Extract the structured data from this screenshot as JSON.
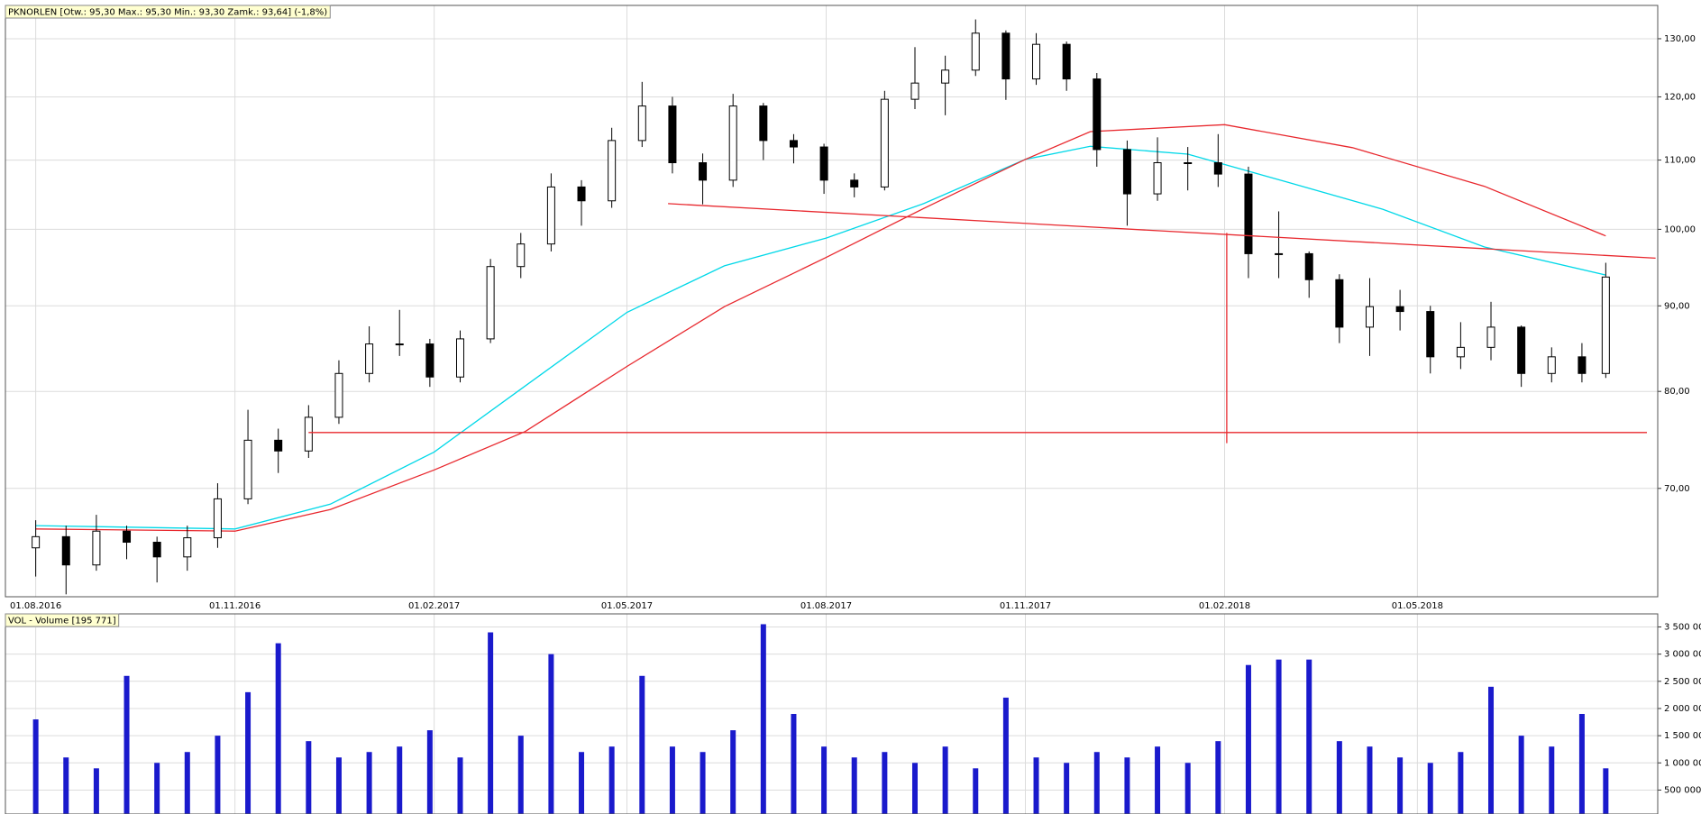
{
  "chart_data": [
    {
      "type": "candlestick",
      "title": "PKNORLEN [Otw.: 95,30  Max.: 95,30  Min.: 93,30  Zamk.: 93,64] (-1,8%)",
      "x": [
        "2016-08-01",
        "2016-08-15",
        "2016-08-29",
        "2016-09-12",
        "2016-09-26",
        "2016-10-10",
        "2016-10-24",
        "2016-11-07",
        "2016-11-21",
        "2016-12-05",
        "2016-12-19",
        "2017-01-02",
        "2017-01-16",
        "2017-01-30",
        "2017-02-13",
        "2017-02-27",
        "2017-03-13",
        "2017-03-27",
        "2017-04-10",
        "2017-04-24",
        "2017-05-08",
        "2017-05-22",
        "2017-06-05",
        "2017-06-19",
        "2017-07-03",
        "2017-07-17",
        "2017-07-31",
        "2017-08-14",
        "2017-08-28",
        "2017-09-11",
        "2017-09-25",
        "2017-10-09",
        "2017-10-23",
        "2017-11-06",
        "2017-11-20",
        "2017-12-04",
        "2017-12-18",
        "2018-01-01",
        "2018-01-15",
        "2018-01-29",
        "2018-02-12",
        "2018-02-26",
        "2018-03-12",
        "2018-03-26",
        "2018-04-09",
        "2018-04-23",
        "2018-05-07",
        "2018-05-21",
        "2018-06-04",
        "2018-06-18",
        "2018-07-02",
        "2018-07-16",
        "2018-07-27"
      ],
      "open": [
        64.5,
        65.5,
        63,
        66,
        65,
        63.7,
        65.4,
        69,
        74.8,
        73.7,
        77.2,
        82,
        85.4,
        85.4,
        81.6,
        86,
        95,
        98,
        106,
        104,
        113,
        118.5,
        109.6,
        107,
        118.5,
        113,
        112,
        107,
        106,
        119.6,
        122.3,
        124.5,
        131,
        123,
        129,
        123,
        111.6,
        105,
        109.6,
        109.6,
        107.9,
        96.7,
        96.7,
        93.3,
        87.4,
        89.9,
        89.3,
        83.9,
        85,
        87.4,
        82,
        83.9,
        82
      ],
      "high": [
        67,
        66.5,
        67.5,
        66.5,
        65.5,
        66.5,
        70.5,
        78,
        76,
        78.5,
        83.5,
        87.5,
        89.5,
        86,
        87,
        96,
        99.5,
        108,
        107,
        115,
        122.5,
        120,
        111,
        120.5,
        119,
        114,
        112.5,
        108,
        121,
        128.5,
        127,
        133.5,
        131.5,
        131,
        129.5,
        124,
        113,
        113.5,
        112,
        114,
        109,
        102.5,
        97,
        94,
        93.5,
        92,
        90,
        88,
        90.5,
        87.6,
        85,
        85.5,
        95.5
      ],
      "low": [
        62,
        60.5,
        62.5,
        63.5,
        61.5,
        62.5,
        64.5,
        68.5,
        71.5,
        73,
        76.5,
        81,
        84,
        80.5,
        81,
        85.5,
        93.5,
        97,
        100.5,
        103,
        112,
        108,
        103.5,
        106,
        110,
        109.5,
        105,
        104.5,
        105.5,
        118,
        117,
        123.5,
        119.5,
        122,
        121,
        109,
        100.5,
        104,
        105.5,
        106,
        93.5,
        93.5,
        91,
        85.5,
        84,
        87,
        82,
        82.5,
        83.5,
        80.5,
        81,
        81,
        81.5
      ],
      "close": [
        65.5,
        63,
        66,
        65,
        63.7,
        65.4,
        69,
        74.8,
        73.7,
        77.2,
        82,
        85.4,
        85.4,
        81.6,
        86,
        95,
        98,
        106,
        104,
        113,
        118.5,
        109.6,
        107,
        118.5,
        113,
        112,
        107,
        106,
        119.6,
        122.3,
        124.5,
        131,
        123,
        129,
        123,
        111.6,
        105,
        109.6,
        109.6,
        107.9,
        96.7,
        96.7,
        93.3,
        87.4,
        89.9,
        89.3,
        83.9,
        85,
        87.4,
        82,
        83.9,
        82,
        93.64
      ],
      "up_color": "#ffffff",
      "down_color": "#000000",
      "overlays": [
        {
          "color": "#00d8e8",
          "x": [
            "2016-08-01",
            "2016-11-01",
            "2016-12-15",
            "2017-02-01",
            "2017-03-15",
            "2017-05-01",
            "2017-06-15",
            "2017-08-01",
            "2017-09-15",
            "2017-11-01",
            "2017-12-01",
            "2018-01-15",
            "2018-03-01",
            "2018-04-15",
            "2018-06-01",
            "2018-07-27"
          ],
          "values": [
            66.5,
            66.2,
            68.5,
            73.6,
            80.6,
            89.2,
            95.1,
            98.8,
            103.6,
            110.1,
            112.1,
            110.9,
            106.8,
            102.8,
            97.6,
            93.9
          ]
        },
        {
          "color": "#e8282e",
          "x": [
            "2016-08-01",
            "2016-11-01",
            "2016-12-15",
            "2017-02-01",
            "2017-03-15",
            "2017-05-01",
            "2017-06-15",
            "2017-08-01",
            "2017-09-15",
            "2017-11-01",
            "2017-12-01",
            "2018-02-01",
            "2018-04-01",
            "2018-06-01",
            "2018-07-27"
          ],
          "values": [
            66.2,
            66,
            68,
            71.8,
            75.7,
            82.8,
            89.9,
            96.2,
            102.9,
            110.1,
            114.4,
            115.5,
            111.9,
            106.1,
            99.1
          ]
        }
      ],
      "lines": [
        {
          "color": "#e8282e",
          "x": [
            "2017-05-20",
            "2018-08-19"
          ],
          "values": [
            103.6,
            96.1
          ]
        },
        {
          "color": "#e8282e",
          "x": [
            "2016-12-05",
            "2018-08-15"
          ],
          "values": [
            75.6,
            75.6
          ]
        },
        {
          "color": "#e8282e",
          "x": [
            "2018-02-02",
            "2018-02-02"
          ],
          "values": [
            99.5,
            74.5
          ]
        }
      ],
      "xlim": [
        "2016-07-18",
        "2018-08-20"
      ],
      "xticks": [
        {
          "value": "2016-08-01",
          "label": "01.08.2016"
        },
        {
          "value": "2016-11-01",
          "label": "01.11.2016"
        },
        {
          "value": "2017-02-01",
          "label": "01.02.2017"
        },
        {
          "value": "2017-05-01",
          "label": "01.05.2017"
        },
        {
          "value": "2017-08-01",
          "label": "01.08.2017"
        },
        {
          "value": "2017-11-01",
          "label": "01.11.2017"
        },
        {
          "value": "2018-02-01",
          "label": "01.02.2018"
        },
        {
          "value": "2018-05-01",
          "label": "01.05.2018"
        }
      ],
      "ylim": [
        60.3,
        136.1
      ],
      "yticks": [
        {
          "value": 70,
          "label": "70,00"
        },
        {
          "value": 80,
          "label": "80,00"
        },
        {
          "value": 90,
          "label": "90,00"
        },
        {
          "value": 100,
          "label": "100,00"
        },
        {
          "value": 110,
          "label": "110,00"
        },
        {
          "value": 120,
          "label": "120,00"
        },
        {
          "value": 130,
          "label": "130,00"
        }
      ],
      "log_scale": true,
      "grid": true
    },
    {
      "type": "bar",
      "title": "VOL - Volume [195 771]",
      "x": [
        "2016-08-01",
        "2016-08-15",
        "2016-08-29",
        "2016-09-12",
        "2016-09-26",
        "2016-10-10",
        "2016-10-24",
        "2016-11-07",
        "2016-11-21",
        "2016-12-05",
        "2016-12-19",
        "2017-01-02",
        "2017-01-16",
        "2017-01-30",
        "2017-02-13",
        "2017-02-27",
        "2017-03-13",
        "2017-03-27",
        "2017-04-10",
        "2017-04-24",
        "2017-05-08",
        "2017-05-22",
        "2017-06-05",
        "2017-06-19",
        "2017-07-03",
        "2017-07-17",
        "2017-07-31",
        "2017-08-14",
        "2017-08-28",
        "2017-09-11",
        "2017-09-25",
        "2017-10-09",
        "2017-10-23",
        "2017-11-06",
        "2017-11-20",
        "2017-12-04",
        "2017-12-18",
        "2018-01-01",
        "2018-01-15",
        "2018-01-29",
        "2018-02-12",
        "2018-02-26",
        "2018-03-12",
        "2018-03-26",
        "2018-04-09",
        "2018-04-23",
        "2018-05-07",
        "2018-05-21",
        "2018-06-04",
        "2018-06-18",
        "2018-07-02",
        "2018-07-16",
        "2018-07-27"
      ],
      "values": [
        1800000,
        1100000,
        900000,
        2600000,
        1000000,
        1200000,
        1500000,
        2300000,
        3200000,
        1400000,
        1100000,
        1200000,
        1300000,
        1600000,
        1100000,
        3400000,
        1500000,
        3000000,
        1200000,
        1300000,
        2600000,
        1300000,
        1200000,
        1600000,
        3550000,
        1900000,
        1300000,
        1100000,
        1200000,
        1000000,
        1300000,
        900000,
        2200000,
        1100000,
        1000000,
        1200000,
        1100000,
        1300000,
        1000000,
        1400000,
        2800000,
        2900000,
        2900000,
        1400000,
        1300000,
        1100000,
        1000000,
        1200000,
        2400000,
        1500000,
        1300000,
        1900000,
        900000
      ],
      "color": "#1a1acc",
      "xlim": [
        "2016-07-18",
        "2018-08-20"
      ],
      "ylim": [
        60000,
        3740000
      ],
      "yticks": [
        {
          "value": 500000,
          "label": "500 000"
        },
        {
          "value": 1000000,
          "label": "1 000 000"
        },
        {
          "value": 1500000,
          "label": "1 500 000"
        },
        {
          "value": 2000000,
          "label": "2 000 000"
        },
        {
          "value": 2500000,
          "label": "2 500 000"
        },
        {
          "value": 3000000,
          "label": "3 000 000"
        },
        {
          "value": 3500000,
          "label": "3 500 000"
        }
      ],
      "grid": true
    }
  ]
}
